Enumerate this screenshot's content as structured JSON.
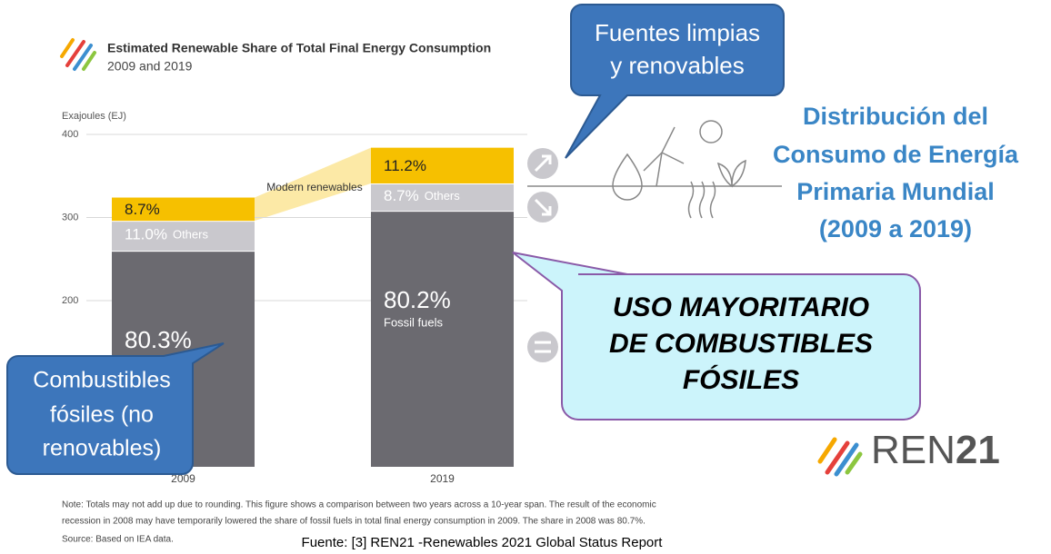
{
  "chart_data": {
    "type": "stacked_bar",
    "title": "Estimated Renewable Share of Total Final Energy Consumption",
    "subtitle": "2009 and 2019",
    "ylabel": "Exajoules (EJ)",
    "categories": [
      "2009",
      "2019"
    ],
    "series": [
      {
        "name": "Fossil fuels",
        "color": "#6b6a70",
        "values": [
          260,
          308
        ],
        "share_labels": [
          "80.3%",
          "80.2%"
        ]
      },
      {
        "name": "Others",
        "color": "#c9c8cd",
        "values": [
          36,
          33
        ],
        "share_labels": [
          "11.0%",
          "8.7%"
        ]
      },
      {
        "name": "Modern renewables",
        "color": "#f6c000",
        "values": [
          28,
          43
        ],
        "share_labels": [
          "8.7%",
          "11.2%"
        ]
      }
    ],
    "ylim": [
      0,
      400
    ],
    "yticks": [
      200,
      300,
      400
    ],
    "grid": true,
    "note": [
      "Note: Totals may not add up due to rounding. This figure shows a comparison between two years across a 10-year span. The result of the economic",
      "recession in 2008 may have temporarily lowered the share of fossil fuels in total final energy consumption in 2009. The share in 2008 was 80.7%."
    ],
    "source": "Source: Based on IEA data."
  },
  "slide": {
    "callout_clean": [
      "Fuentes limpias",
      "y renovables"
    ],
    "heading": [
      "Distribución del",
      "Consumo de Energía",
      "Primaria Mundial",
      "(2009 a 2019)"
    ],
    "callout_fossil_use": [
      "USO MAYORITARIO",
      "DE COMBUSTIBLES",
      "FÓSILES"
    ],
    "callout_fossil": [
      "Combustibles",
      "fósiles (no",
      "renovables)"
    ],
    "logo": [
      "REN",
      "21"
    ],
    "reference": "Fuente: [3] REN21 -Renewables 2021 Global Status Report"
  }
}
